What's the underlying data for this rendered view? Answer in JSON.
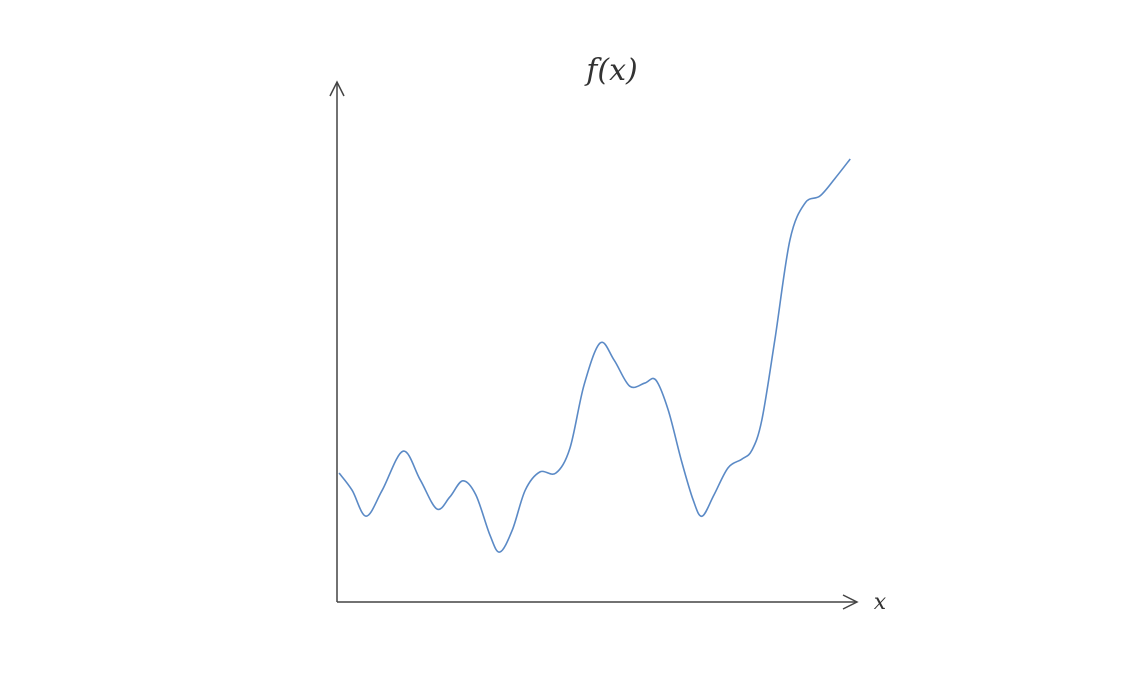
{
  "chart_data": {
    "type": "line",
    "title": "f(x)",
    "x_label": "x",
    "xlim": [
      0,
      10
    ],
    "ylim": [
      0,
      10
    ],
    "color": "#5b8ac6",
    "x": [
      0.04,
      0.29,
      0.56,
      0.87,
      1.27,
      1.6,
      1.92,
      2.17,
      2.42,
      2.67,
      2.94,
      3.13,
      3.37,
      3.62,
      3.9,
      4.21,
      4.48,
      4.75,
      5.06,
      5.33,
      5.63,
      5.92,
      6.13,
      6.37,
      6.62,
      6.85,
      7.02,
      7.25,
      7.52,
      7.79,
      7.98,
      8.17,
      8.42,
      8.71,
      9.0,
      9.29,
      9.58,
      9.87
    ],
    "values": [
      2.48,
      2.15,
      1.65,
      2.15,
      2.9,
      2.35,
      1.79,
      2.02,
      2.33,
      2.06,
      1.29,
      0.96,
      1.38,
      2.15,
      2.5,
      2.48,
      2.96,
      4.17,
      4.98,
      4.65,
      4.15,
      4.21,
      4.27,
      3.69,
      2.73,
      1.96,
      1.65,
      2.06,
      2.58,
      2.75,
      2.92,
      3.5,
      5.04,
      6.96,
      7.67,
      7.81,
      8.15,
      8.52
    ]
  }
}
